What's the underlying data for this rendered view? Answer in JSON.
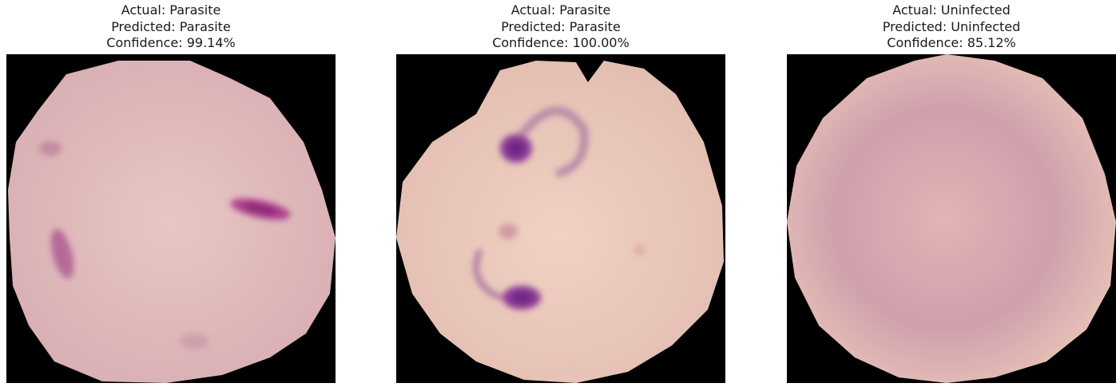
{
  "panels": [
    {
      "actual": "Actual: Parasite",
      "predicted": "Predicted: Parasite",
      "confidence": "Confidence: 99.14%",
      "cell_color": "#e3bfbf",
      "image_description_name": "parasitized-cell-image"
    },
    {
      "actual": "Actual: Parasite",
      "predicted": "Predicted: Parasite",
      "confidence": "Confidence: 100.00%",
      "cell_color": "#e9c9ba",
      "image_description_name": "parasitized-cell-image"
    },
    {
      "actual": "Actual: Uninfected",
      "predicted": "Predicted: Uninfected",
      "confidence": "Confidence: 85.12%",
      "cell_color": "#d6a9b1",
      "image_description_name": "uninfected-cell-image"
    }
  ],
  "colors": {
    "background": "#000000",
    "stain_dark": "#7a2a8a",
    "stain_medium": "#b05aa0"
  }
}
